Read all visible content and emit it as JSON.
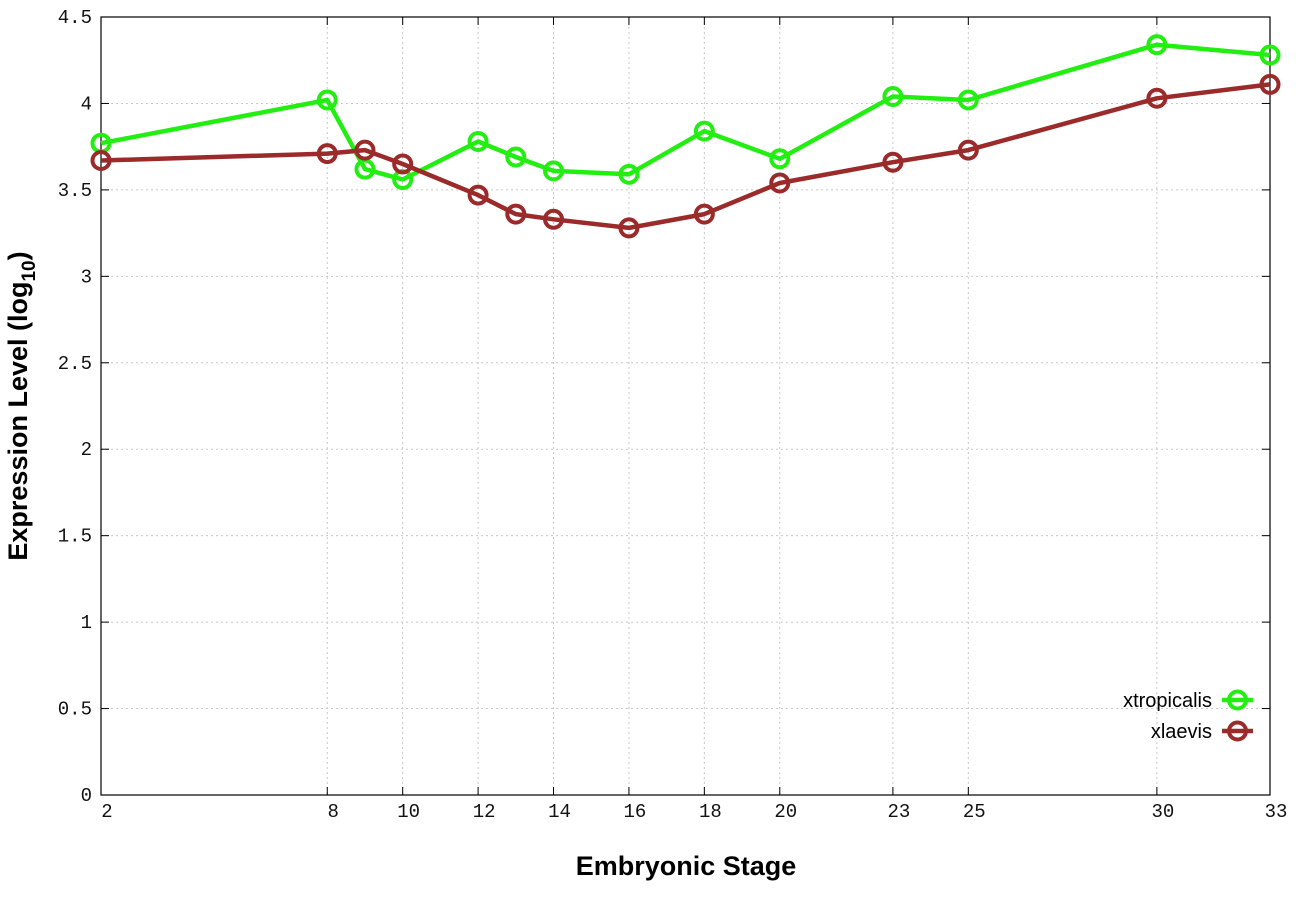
{
  "chart_data": {
    "type": "line",
    "xlabel": "Embryonic Stage",
    "ylabel_main": "Expression Level (log",
    "ylabel_sub": "10",
    "ylabel_close": ")",
    "x": [
      2,
      8,
      9,
      10,
      12,
      13,
      14,
      16,
      18,
      20,
      23,
      25,
      30,
      33
    ],
    "x_ticks": [
      2,
      8,
      10,
      12,
      14,
      16,
      18,
      20,
      23,
      25,
      30,
      33
    ],
    "x_tick_labels": [
      "2",
      "8",
      "10",
      "12",
      "14",
      "16",
      "18",
      "20",
      "23",
      "25",
      "30",
      "33"
    ],
    "y_ticks": [
      0,
      0.5,
      1,
      1.5,
      2,
      2.5,
      3,
      3.5,
      4,
      4.5
    ],
    "y_tick_labels": [
      "0",
      "0.5",
      "1",
      "1.5",
      "2",
      "2.5",
      "3",
      "3.5",
      "4",
      "4.5"
    ],
    "ylim": [
      0,
      4.5
    ],
    "xlim": [
      2,
      33
    ],
    "grid": true,
    "legend_position": "bottom-right",
    "series": [
      {
        "name": "xtropicalis",
        "color": "#22ee11",
        "values": [
          3.77,
          4.02,
          3.62,
          3.56,
          3.78,
          3.69,
          3.61,
          3.59,
          3.84,
          3.68,
          4.04,
          4.02,
          4.34,
          4.28
        ]
      },
      {
        "name": "xlaevis",
        "color": "#9b2a2a",
        "values": [
          3.67,
          3.71,
          3.73,
          3.65,
          3.47,
          3.36,
          3.33,
          3.28,
          3.36,
          3.54,
          3.66,
          3.73,
          4.03,
          4.11
        ]
      }
    ]
  }
}
